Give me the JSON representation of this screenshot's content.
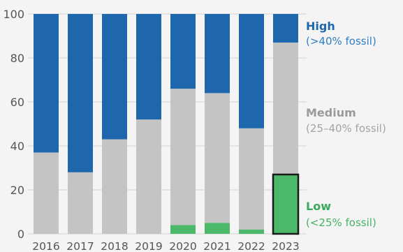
{
  "chart_data": {
    "type": "bar",
    "stacked": true,
    "categories": [
      "2016",
      "2017",
      "2018",
      "2019",
      "2020",
      "2021",
      "2022",
      "2023"
    ],
    "yticks": [
      "0",
      "20",
      "40",
      "60",
      "80",
      "100"
    ],
    "ylim": [
      0,
      100
    ],
    "series": [
      {
        "key": "low",
        "values": [
          0,
          0,
          0,
          0,
          4,
          5,
          2,
          27
        ],
        "color": "#4cb86a"
      },
      {
        "key": "medium",
        "values": [
          37,
          28,
          43,
          52,
          62,
          59,
          46,
          60
        ],
        "color": "#c4c4c4"
      },
      {
        "key": "high",
        "values": [
          63,
          72,
          57,
          48,
          34,
          36,
          52,
          13
        ],
        "color": "#1f67ad"
      }
    ],
    "highlight": {
      "category": "2023",
      "series": "low",
      "outline_color": "#1a1a1a"
    },
    "legend": {
      "placement": "right",
      "items": [
        {
          "series": "high",
          "title": "High",
          "subtitle": "(>40% fossil)",
          "title_color": "#1f67ad",
          "subtitle_color": "#2f7fc4"
        },
        {
          "series": "medium",
          "title": "Medium",
          "subtitle": "(25–40% fossil)",
          "title_color": "#9a9a9a",
          "subtitle_color": "#a3a3a3"
        },
        {
          "series": "low",
          "title": "Low",
          "subtitle": "(<25% fossil)",
          "title_color": "#3aa95b",
          "subtitle_color": "#45b364"
        }
      ]
    },
    "grid": true
  }
}
